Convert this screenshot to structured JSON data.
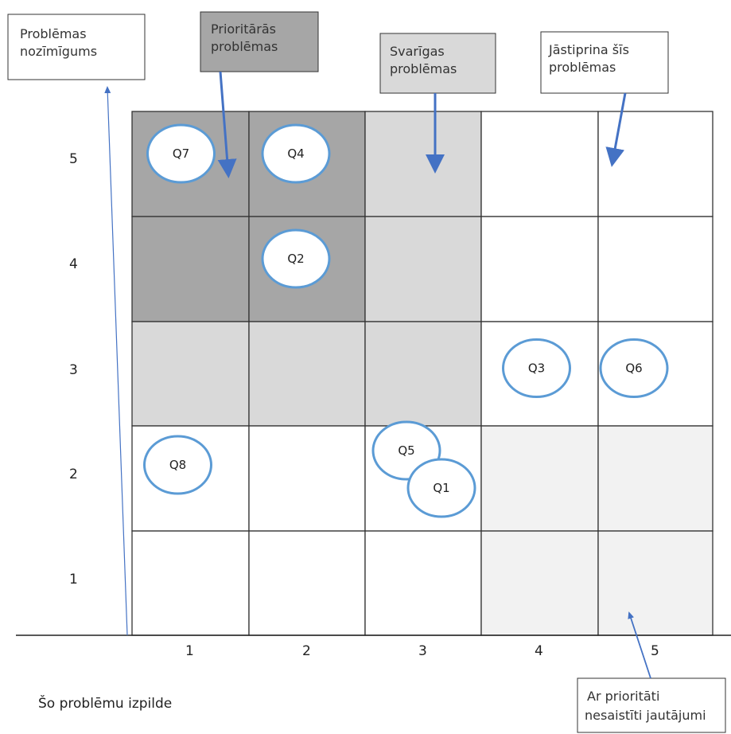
{
  "labels": {
    "nozimigums": [
      "Problēmas",
      "nozīmīgums"
    ],
    "prioritaras": [
      "Prioritārās",
      "problēmas"
    ],
    "svarigas": [
      "Svarīgas",
      "problēmas"
    ],
    "jastiprina": [
      "Jāstiprina šīs",
      "problēmas"
    ],
    "nesaistiti": [
      "Ar prioritāti",
      "nesaistīti jautājumi"
    ]
  },
  "x_axis_title": "Šo problēmu izpilde",
  "x_ticks": [
    "1",
    "2",
    "3",
    "4",
    "5"
  ],
  "y_ticks": [
    "5",
    "4",
    "3",
    "2",
    "1"
  ],
  "colors": {
    "dark": "#a6a6a6",
    "medium": "#d9d9d9",
    "light": "#f2f2f2",
    "white": "#ffffff",
    "bubble_stroke": "#5b9bd5",
    "arrow": "#4472c4",
    "grid": "#333333"
  },
  "cell_shading": [
    [
      "dark",
      "dark",
      "medium",
      "white",
      "white"
    ],
    [
      "dark",
      "dark",
      "medium",
      "white",
      "white"
    ],
    [
      "medium",
      "medium",
      "medium",
      "white",
      "white"
    ],
    [
      "white",
      "white",
      "white",
      "light",
      "light"
    ],
    [
      "white",
      "white",
      "white",
      "light",
      "light"
    ]
  ],
  "bubbles": [
    {
      "id": "Q7",
      "x": 1,
      "y": 5
    },
    {
      "id": "Q4",
      "x": 2,
      "y": 5
    },
    {
      "id": "Q2",
      "x": 2,
      "y": 4
    },
    {
      "id": "Q3",
      "x": 4,
      "y": 3
    },
    {
      "id": "Q6",
      "x": 5,
      "y": 3
    },
    {
      "id": "Q8",
      "x": 1,
      "y": 2
    },
    {
      "id": "Q5",
      "x": 3,
      "y": 2
    },
    {
      "id": "Q1",
      "x": 3,
      "y": 2
    }
  ]
}
